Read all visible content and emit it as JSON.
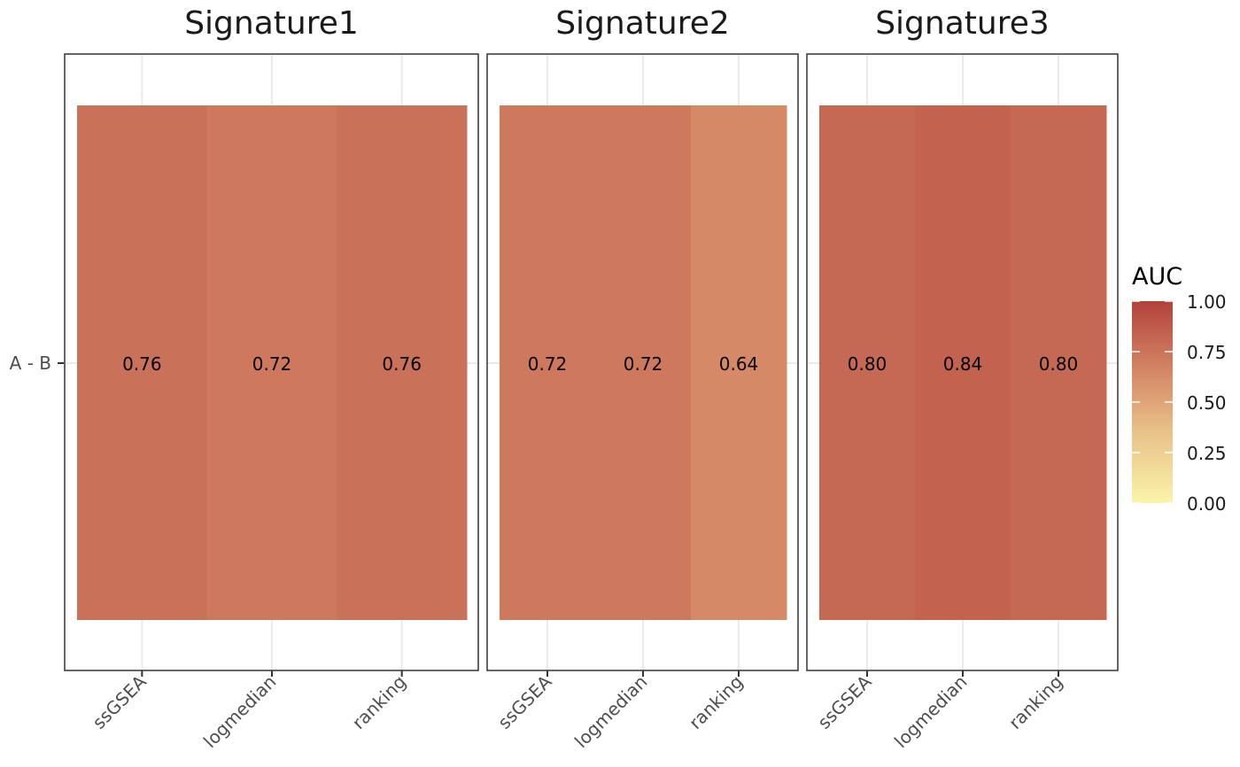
{
  "chart_data": {
    "type": "heatmap",
    "facets": [
      {
        "title": "Signature1",
        "categories": [
          "ssGSEA",
          "logmedian",
          "ranking"
        ],
        "values": [
          0.76,
          0.72,
          0.76
        ],
        "labels": [
          "0.76",
          "0.72",
          "0.76"
        ]
      },
      {
        "title": "Signature2",
        "categories": [
          "ssGSEA",
          "logmedian",
          "ranking"
        ],
        "values": [
          0.72,
          0.72,
          0.64
        ],
        "labels": [
          "0.72",
          "0.72",
          "0.64"
        ]
      },
      {
        "title": "Signature3",
        "categories": [
          "ssGSEA",
          "logmedian",
          "ranking"
        ],
        "values": [
          0.8,
          0.84,
          0.8
        ],
        "labels": [
          "0.80",
          "0.84",
          "0.80"
        ]
      }
    ],
    "y_categories": [
      "A - B"
    ],
    "legend": {
      "title": "AUC",
      "range": [
        0,
        1
      ],
      "ticks": [
        "0.00",
        "0.25",
        "0.50",
        "0.75",
        "1.00"
      ],
      "colors": [
        "#fbf3a9",
        "#b2423c"
      ],
      "position": "right"
    },
    "grid": true
  }
}
